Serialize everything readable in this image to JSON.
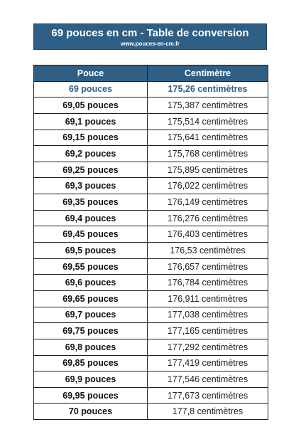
{
  "header": {
    "title": "69 pouces en cm - Table de conversion",
    "url": "www.pouces-en-cm.fr"
  },
  "table": {
    "columns": [
      "Pouce",
      "Centimètre"
    ],
    "rows": [
      {
        "inches": "69 pouces",
        "cm": "175,26 centimètres"
      },
      {
        "inches": "69,05 pouces",
        "cm": "175,387 centimètres"
      },
      {
        "inches": "69,1 pouces",
        "cm": "175,514 centimètres"
      },
      {
        "inches": "69,15 pouces",
        "cm": "175,641 centimètres"
      },
      {
        "inches": "69,2 pouces",
        "cm": "175,768 centimètres"
      },
      {
        "inches": "69,25 pouces",
        "cm": "175,895 centimètres"
      },
      {
        "inches": "69,3 pouces",
        "cm": "176,022 centimètres"
      },
      {
        "inches": "69,35 pouces",
        "cm": "176,149 centimètres"
      },
      {
        "inches": "69,4 pouces",
        "cm": "176,276 centimètres"
      },
      {
        "inches": "69,45 pouces",
        "cm": "176,403 centimètres"
      },
      {
        "inches": "69,5 pouces",
        "cm": "176,53 centimètres"
      },
      {
        "inches": "69,55 pouces",
        "cm": "176,657 centimètres"
      },
      {
        "inches": "69,6 pouces",
        "cm": "176,784 centimètres"
      },
      {
        "inches": "69,65 pouces",
        "cm": "176,911 centimètres"
      },
      {
        "inches": "69,7 pouces",
        "cm": "177,038 centimètres"
      },
      {
        "inches": "69,75 pouces",
        "cm": "177,165 centimètres"
      },
      {
        "inches": "69,8 pouces",
        "cm": "177,292 centimètres"
      },
      {
        "inches": "69,85 pouces",
        "cm": "177,419 centimètres"
      },
      {
        "inches": "69,9 pouces",
        "cm": "177,546 centimètres"
      },
      {
        "inches": "69,95 pouces",
        "cm": "177,673 centimètres"
      },
      {
        "inches": "70 pouces",
        "cm": "177,8 centimètres"
      }
    ]
  },
  "colors": {
    "header_blue": "#2f5f85",
    "highlight_text": "#2f5f85",
    "border": "#1f1f1f"
  }
}
